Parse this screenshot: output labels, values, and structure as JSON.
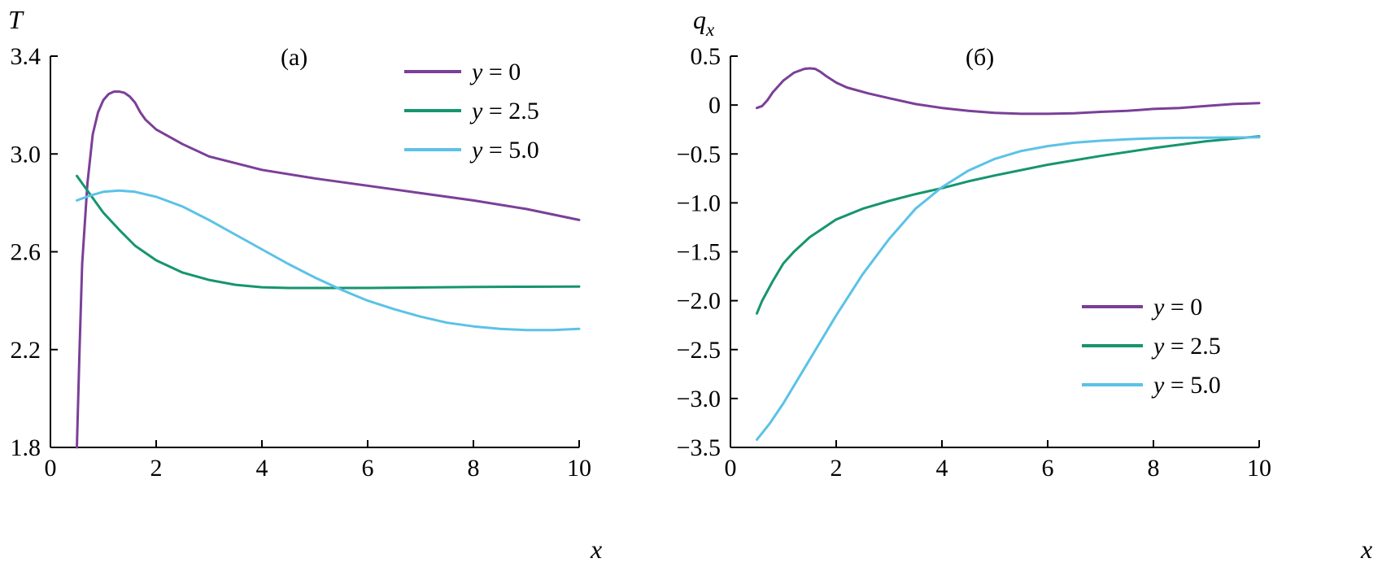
{
  "chart_data": [
    {
      "type": "line",
      "panel_label": "(а)",
      "ylabel": "T",
      "xlabel": "x",
      "xlim": [
        0,
        10
      ],
      "ylim": [
        1.8,
        3.4
      ],
      "x_ticks": [
        0,
        2,
        4,
        6,
        8,
        10
      ],
      "x_tick_labels": [
        "0",
        "2",
        "4",
        "6",
        "8",
        "10"
      ],
      "y_ticks": [
        1.8,
        2.2,
        2.6,
        3.0,
        3.4
      ],
      "y_tick_labels": [
        "1.8",
        "2.2",
        "2.6",
        "3.0",
        "3.4"
      ],
      "legend_position": "top-right",
      "series": [
        {
          "name": "y = 0",
          "color": "#7B3F98",
          "x": [
            0.5,
            0.55,
            0.6,
            0.7,
            0.8,
            0.9,
            1.0,
            1.1,
            1.2,
            1.3,
            1.4,
            1.5,
            1.6,
            1.7,
            1.8,
            2.0,
            2.5,
            3.0,
            4.0,
            5.0,
            6.0,
            7.0,
            8.0,
            9.0,
            10.0
          ],
          "y": [
            1.8,
            2.2,
            2.55,
            2.88,
            3.08,
            3.17,
            3.22,
            3.245,
            3.255,
            3.255,
            3.25,
            3.235,
            3.21,
            3.17,
            3.14,
            3.1,
            3.04,
            2.99,
            2.935,
            2.9,
            2.87,
            2.84,
            2.81,
            2.775,
            2.73
          ]
        },
        {
          "name": "y = 2.5",
          "color": "#16956F",
          "x": [
            0.5,
            0.8,
            1.0,
            1.3,
            1.6,
            2.0,
            2.5,
            3.0,
            3.5,
            4.0,
            4.5,
            5.0,
            6.0,
            7.0,
            8.0,
            9.0,
            10.0
          ],
          "y": [
            2.91,
            2.82,
            2.76,
            2.69,
            2.625,
            2.565,
            2.515,
            2.485,
            2.465,
            2.455,
            2.452,
            2.452,
            2.452,
            2.454,
            2.456,
            2.457,
            2.458
          ],
          "lineWidth": 3
        },
        {
          "name": "y = 5.0",
          "color": "#5BC2E7",
          "x": [
            0.5,
            0.75,
            1.0,
            1.3,
            1.6,
            2.0,
            2.5,
            3.0,
            3.5,
            4.0,
            4.5,
            5.0,
            5.5,
            6.0,
            6.5,
            7.0,
            7.5,
            8.0,
            8.5,
            9.0,
            9.5,
            10.0
          ],
          "y": [
            2.81,
            2.83,
            2.845,
            2.85,
            2.845,
            2.825,
            2.785,
            2.73,
            2.67,
            2.61,
            2.55,
            2.495,
            2.445,
            2.4,
            2.365,
            2.335,
            2.31,
            2.295,
            2.285,
            2.28,
            2.28,
            2.285
          ]
        }
      ]
    },
    {
      "type": "line",
      "panel_label": "(б)",
      "ylabel": "q",
      "ylabel_sub": "x",
      "xlabel": "x",
      "xlim": [
        0,
        10
      ],
      "ylim": [
        -3.5,
        0.5
      ],
      "x_ticks": [
        0,
        2,
        4,
        6,
        8,
        10
      ],
      "x_tick_labels": [
        "0",
        "2",
        "4",
        "6",
        "8",
        "10"
      ],
      "y_ticks": [
        -3.5,
        -3.0,
        -2.5,
        -2.0,
        -1.5,
        -1.0,
        -0.5,
        0,
        0.5
      ],
      "y_tick_labels": [
        "−3.5",
        "−3.0",
        "−2.5",
        "−2.0",
        "−1.5",
        "−1.0",
        "−0.5",
        "0",
        "0.5"
      ],
      "legend_position": "bottom-right",
      "series": [
        {
          "name": "y = 0",
          "color": "#7B3F98",
          "x": [
            0.5,
            0.6,
            0.7,
            0.8,
            1.0,
            1.2,
            1.4,
            1.5,
            1.6,
            1.7,
            1.8,
            2.0,
            2.2,
            2.6,
            3.0,
            3.5,
            4.0,
            4.5,
            5.0,
            5.5,
            6.0,
            6.5,
            7.0,
            7.5,
            8.0,
            8.5,
            9.0,
            9.5,
            10.0
          ],
          "y": [
            -0.03,
            -0.01,
            0.05,
            0.13,
            0.25,
            0.33,
            0.37,
            0.375,
            0.37,
            0.34,
            0.3,
            0.23,
            0.18,
            0.12,
            0.07,
            0.01,
            -0.03,
            -0.06,
            -0.08,
            -0.09,
            -0.09,
            -0.085,
            -0.07,
            -0.06,
            -0.04,
            -0.03,
            -0.01,
            0.01,
            0.02
          ]
        },
        {
          "name": "y = 2.5",
          "color": "#16956F",
          "x": [
            0.5,
            0.6,
            0.8,
            1.0,
            1.2,
            1.5,
            2.0,
            2.5,
            3.0,
            3.5,
            4.0,
            4.5,
            5.0,
            6.0,
            7.0,
            8.0,
            9.0,
            10.0
          ],
          "y": [
            -2.13,
            -2.0,
            -1.8,
            -1.62,
            -1.5,
            -1.35,
            -1.17,
            -1.06,
            -0.98,
            -0.91,
            -0.85,
            -0.78,
            -0.72,
            -0.61,
            -0.52,
            -0.44,
            -0.37,
            -0.32
          ]
        },
        {
          "name": "y = 5.0",
          "color": "#5BC2E7",
          "x": [
            0.5,
            0.75,
            1.0,
            1.5,
            2.0,
            2.5,
            3.0,
            3.5,
            4.0,
            4.5,
            5.0,
            5.5,
            6.0,
            6.5,
            7.0,
            7.5,
            8.0,
            8.5,
            9.0,
            9.5,
            10.0
          ],
          "y": [
            -3.42,
            -3.25,
            -3.05,
            -2.6,
            -2.15,
            -1.73,
            -1.37,
            -1.06,
            -0.84,
            -0.67,
            -0.55,
            -0.47,
            -0.42,
            -0.385,
            -0.365,
            -0.35,
            -0.34,
            -0.335,
            -0.333,
            -0.332,
            -0.33
          ]
        }
      ]
    }
  ]
}
